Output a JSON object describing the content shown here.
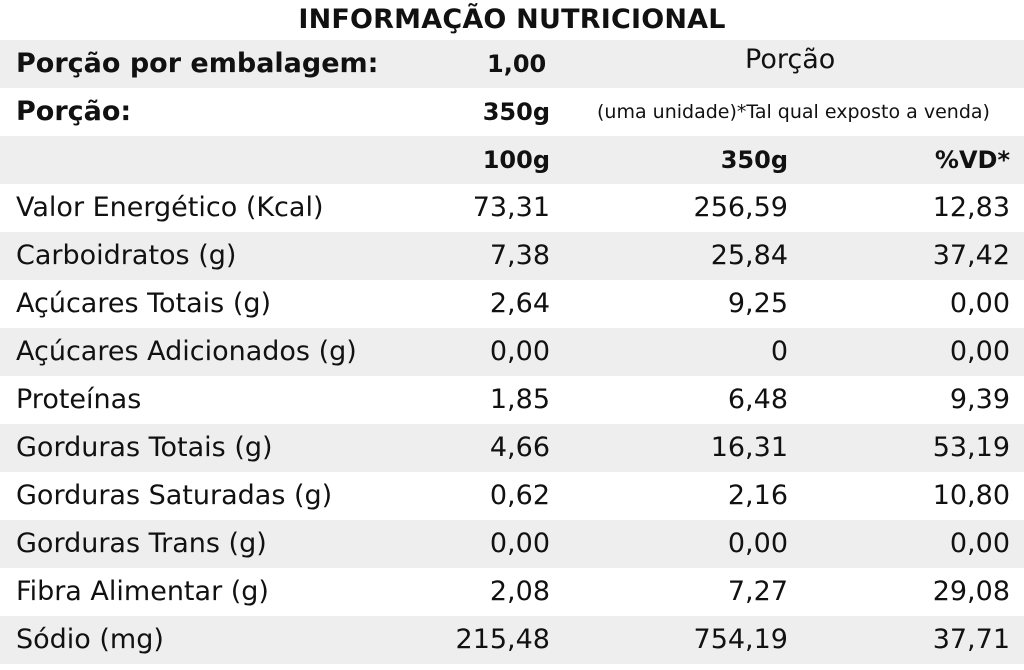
{
  "title": "INFORMAÇÃO NUTRICIONAL",
  "header": {
    "servings_label": "Porção por embalagem:",
    "servings_value": "1,00",
    "porcao_heading": "Porção",
    "portion_label": "Porção:",
    "portion_value": "350g",
    "portion_note": "(uma unidade)*Tal qual exposto a venda)"
  },
  "columns": [
    "100g",
    "350g",
    "%VD*"
  ],
  "rows": [
    {
      "name": "Valor Energético (Kcal)",
      "per100": "73,31",
      "per350": "256,59",
      "vd": "12,83"
    },
    {
      "name": "Carboidratos (g)",
      "per100": "7,38",
      "per350": "25,84",
      "vd": "37,42"
    },
    {
      "name": "Açúcares Totais (g)",
      "per100": "2,64",
      "per350": "9,25",
      "vd": "0,00"
    },
    {
      "name": "Açúcares Adicionados (g)",
      "per100": "0,00",
      "per350": "0",
      "vd": "0,00"
    },
    {
      "name": "Proteínas",
      "per100": "1,85",
      "per350": "6,48",
      "vd": "9,39"
    },
    {
      "name": "Gorduras Totais (g)",
      "per100": "4,66",
      "per350": "16,31",
      "vd": "53,19"
    },
    {
      "name": "Gorduras Saturadas (g)",
      "per100": "0,62",
      "per350": "2,16",
      "vd": "10,80"
    },
    {
      "name": "Gorduras Trans (g)",
      "per100": "0,00",
      "per350": "0,00",
      "vd": "0,00"
    },
    {
      "name": "Fibra Alimentar (g)",
      "per100": "2,08",
      "per350": "7,27",
      "vd": "29,08"
    },
    {
      "name": "Sódio (mg)",
      "per100": "215,48",
      "per350": "754,19",
      "vd": "37,71"
    }
  ]
}
